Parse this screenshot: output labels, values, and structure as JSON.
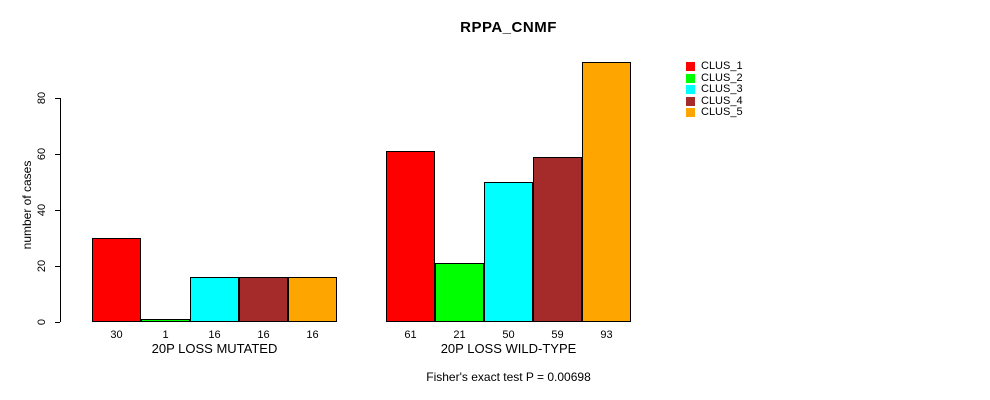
{
  "chart_data": {
    "type": "bar",
    "title": "RPPA_CNMF",
    "ylabel": "number of cases",
    "xlabel": "",
    "yticks": [
      0,
      20,
      40,
      60,
      80
    ],
    "ylim": [
      0,
      95
    ],
    "grid": false,
    "legend_position": "right",
    "series": [
      {
        "name": "CLUS_1",
        "color": "#FF0000"
      },
      {
        "name": "CLUS_2",
        "color": "#00FF00"
      },
      {
        "name": "CLUS_3",
        "color": "#00FFFF"
      },
      {
        "name": "CLUS_4",
        "color": "#A52A2A"
      },
      {
        "name": "CLUS_5",
        "color": "#FFA500"
      }
    ],
    "groups": [
      {
        "label": "20P LOSS MUTATED",
        "values": [
          30,
          1,
          16,
          16,
          16
        ]
      },
      {
        "label": "20P LOSS WILD-TYPE",
        "values": [
          61,
          21,
          50,
          59,
          93
        ]
      }
    ],
    "bar_value_labels": [
      [
        30,
        1,
        16,
        16,
        16
      ],
      [
        61,
        21,
        50,
        59,
        93
      ]
    ],
    "annotation": "Fisher's exact test P = 0.00698",
    "axis_color": "#000000"
  }
}
